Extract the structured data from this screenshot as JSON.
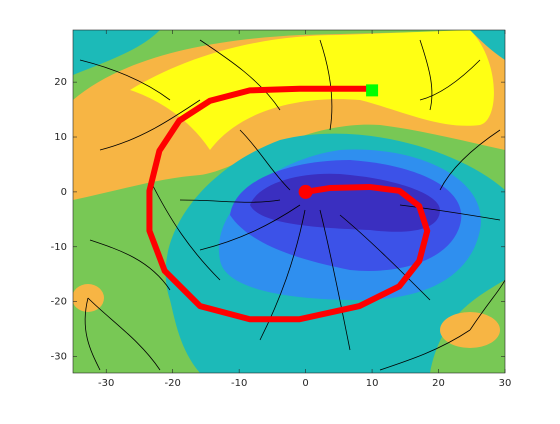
{
  "chart_data": {
    "type": "line",
    "x": [
      0,
      3.6,
      9.6,
      14.1,
      17.1,
      18.3,
      17.1,
      14.1,
      8.1,
      -0.9,
      -8.4,
      -15.9,
      -21.2,
      -23.5,
      -23.5,
      -22,
      -19,
      -14.4,
      -8.4,
      -0.9,
      9.9
    ],
    "values": [
      0,
      0.7,
      0.9,
      0.2,
      -2.6,
      -7.1,
      -12.6,
      -17.2,
      -20.8,
      -23.2,
      -23.2,
      -20.8,
      -14.4,
      -7.1,
      0.2,
      7.5,
      13,
      16.6,
      18.5,
      18.8,
      18.8
    ],
    "color": "#ff0000",
    "markers": [
      {
        "x": 0,
        "y": 0,
        "shape": "circle",
        "color": "#ff0000"
      },
      {
        "x": 10,
        "y": 18.5,
        "shape": "square",
        "color": "#00ff00"
      }
    ],
    "xlim": [
      -35,
      30
    ],
    "ylim": [
      -33,
      29.5
    ],
    "xticks": [
      -30,
      -20,
      -10,
      0,
      10,
      20,
      30
    ],
    "yticks": [
      -30,
      -20,
      -10,
      0,
      10,
      20
    ],
    "grid": false
  }
}
